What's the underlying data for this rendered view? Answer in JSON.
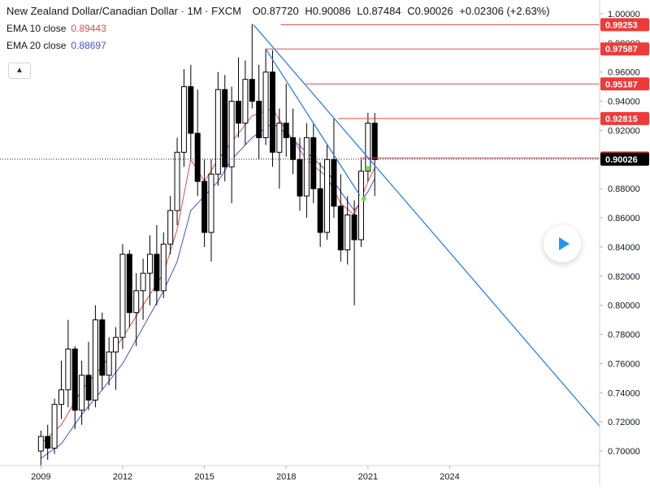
{
  "header": {
    "symbol": "New Zealand Dollar/Canadian Dollar · 1M · FXCM",
    "open": "O0.87720",
    "high": "H0.90086",
    "low": "L0.87484",
    "close": "C0.90026",
    "change": "+0.02306 (+2.63%)",
    "ema10_label": "EMA 10 close",
    "ema10_value": "0.89443",
    "ema20_label": "EMA 20 close",
    "ema20_value": "0.88697"
  },
  "colors": {
    "candle": "#000000",
    "ema10": "#e04c4c",
    "ema20": "#4c4ce0",
    "level_line": "#e04c4c",
    "level_label_bg": "#ef3a3a",
    "trendline": "#2f7ef0",
    "price_label_bg": "#000000",
    "marker": "#7ed957"
  },
  "icons": {
    "collapse": "chevron-up-icon",
    "play": "play-icon"
  },
  "chart_data": {
    "type": "candlestick",
    "x_ticks": [
      "2009",
      "2012",
      "2015",
      "2018",
      "2021",
      "2024"
    ],
    "y_ticks": [
      "0.70000",
      "0.72000",
      "0.74000",
      "0.76000",
      "0.78000",
      "0.80000",
      "0.82000",
      "0.84000",
      "0.86000",
      "0.88000",
      "0.90000",
      "0.92000",
      "0.94000",
      "0.96000",
      "0.98000",
      "1.00000"
    ],
    "ylim": [
      0.69,
      1.005
    ],
    "xlim": [
      2007.5,
      2029.5
    ],
    "current_price": "0.90026",
    "horizontal_levels": [
      {
        "price": 0.99253,
        "label": "0.99253",
        "start_x": 2017.8
      },
      {
        "price": 0.97587,
        "label": "0.97587",
        "start_x": 2017.25
      },
      {
        "price": 0.95187,
        "label": "0.95187",
        "start_x": 2018.7
      },
      {
        "price": 0.92815,
        "label": "0.92815",
        "start_x": 2019.9
      },
      {
        "price": 0.90112,
        "label": "0.90112",
        "start_x": 2020.7
      }
    ],
    "trendlines": [
      {
        "x1": 2016.8,
        "y1": 0.9925,
        "x2": 2029.5,
        "y2": 0.717
      },
      {
        "x1": 2017.25,
        "y1": 0.9759,
        "x2": 2020.7,
        "y2": 0.8755
      }
    ],
    "markers": [
      {
        "x": 2020.85,
        "y": 0.873
      },
      {
        "x": 2021.0,
        "y": 0.894
      }
    ],
    "candles": [
      {
        "x": 2009.0,
        "o": 0.7,
        "h": 0.714,
        "l": 0.69,
        "c": 0.71
      },
      {
        "x": 2009.25,
        "o": 0.71,
        "h": 0.718,
        "l": 0.694,
        "c": 0.702
      },
      {
        "x": 2009.5,
        "o": 0.702,
        "h": 0.736,
        "l": 0.698,
        "c": 0.732
      },
      {
        "x": 2009.75,
        "o": 0.732,
        "h": 0.762,
        "l": 0.722,
        "c": 0.742
      },
      {
        "x": 2010.0,
        "o": 0.742,
        "h": 0.79,
        "l": 0.73,
        "c": 0.77
      },
      {
        "x": 2010.25,
        "o": 0.77,
        "h": 0.772,
        "l": 0.715,
        "c": 0.728
      },
      {
        "x": 2010.5,
        "o": 0.728,
        "h": 0.762,
        "l": 0.718,
        "c": 0.752
      },
      {
        "x": 2010.75,
        "o": 0.752,
        "h": 0.775,
        "l": 0.728,
        "c": 0.735
      },
      {
        "x": 2011.0,
        "o": 0.735,
        "h": 0.8,
        "l": 0.73,
        "c": 0.79
      },
      {
        "x": 2011.25,
        "o": 0.79,
        "h": 0.795,
        "l": 0.742,
        "c": 0.752
      },
      {
        "x": 2011.5,
        "o": 0.752,
        "h": 0.778,
        "l": 0.745,
        "c": 0.768
      },
      {
        "x": 2011.75,
        "o": 0.768,
        "h": 0.785,
        "l": 0.742,
        "c": 0.778
      },
      {
        "x": 2012.0,
        "o": 0.778,
        "h": 0.842,
        "l": 0.77,
        "c": 0.835
      },
      {
        "x": 2012.25,
        "o": 0.835,
        "h": 0.838,
        "l": 0.785,
        "c": 0.795
      },
      {
        "x": 2012.5,
        "o": 0.795,
        "h": 0.822,
        "l": 0.772,
        "c": 0.81
      },
      {
        "x": 2012.75,
        "o": 0.81,
        "h": 0.832,
        "l": 0.79,
        "c": 0.822
      },
      {
        "x": 2013.0,
        "o": 0.822,
        "h": 0.848,
        "l": 0.8,
        "c": 0.835
      },
      {
        "x": 2013.25,
        "o": 0.835,
        "h": 0.855,
        "l": 0.8,
        "c": 0.81
      },
      {
        "x": 2013.5,
        "o": 0.81,
        "h": 0.85,
        "l": 0.805,
        "c": 0.842
      },
      {
        "x": 2013.75,
        "o": 0.842,
        "h": 0.875,
        "l": 0.835,
        "c": 0.865
      },
      {
        "x": 2014.0,
        "o": 0.865,
        "h": 0.915,
        "l": 0.855,
        "c": 0.905
      },
      {
        "x": 2014.25,
        "o": 0.905,
        "h": 0.962,
        "l": 0.895,
        "c": 0.95
      },
      {
        "x": 2014.5,
        "o": 0.95,
        "h": 0.965,
        "l": 0.9,
        "c": 0.918
      },
      {
        "x": 2014.75,
        "o": 0.918,
        "h": 0.948,
        "l": 0.875,
        "c": 0.885
      },
      {
        "x": 2015.0,
        "o": 0.885,
        "h": 0.9,
        "l": 0.84,
        "c": 0.85
      },
      {
        "x": 2015.25,
        "o": 0.85,
        "h": 0.9,
        "l": 0.83,
        "c": 0.89
      },
      {
        "x": 2015.5,
        "o": 0.89,
        "h": 0.96,
        "l": 0.882,
        "c": 0.948
      },
      {
        "x": 2015.75,
        "o": 0.948,
        "h": 0.958,
        "l": 0.885,
        "c": 0.895
      },
      {
        "x": 2016.0,
        "o": 0.895,
        "h": 0.95,
        "l": 0.87,
        "c": 0.94
      },
      {
        "x": 2016.25,
        "o": 0.94,
        "h": 0.97,
        "l": 0.915,
        "c": 0.925
      },
      {
        "x": 2016.5,
        "o": 0.925,
        "h": 0.968,
        "l": 0.91,
        "c": 0.955
      },
      {
        "x": 2016.75,
        "o": 0.955,
        "h": 0.993,
        "l": 0.935,
        "c": 0.94
      },
      {
        "x": 2017.0,
        "o": 0.94,
        "h": 0.965,
        "l": 0.9,
        "c": 0.915
      },
      {
        "x": 2017.25,
        "o": 0.915,
        "h": 0.976,
        "l": 0.91,
        "c": 0.96
      },
      {
        "x": 2017.5,
        "o": 0.96,
        "h": 0.975,
        "l": 0.895,
        "c": 0.905
      },
      {
        "x": 2017.75,
        "o": 0.905,
        "h": 0.935,
        "l": 0.88,
        "c": 0.925
      },
      {
        "x": 2018.0,
        "o": 0.925,
        "h": 0.952,
        "l": 0.902,
        "c": 0.915
      },
      {
        "x": 2018.25,
        "o": 0.915,
        "h": 0.935,
        "l": 0.89,
        "c": 0.9
      },
      {
        "x": 2018.5,
        "o": 0.9,
        "h": 0.915,
        "l": 0.865,
        "c": 0.875
      },
      {
        "x": 2018.75,
        "o": 0.875,
        "h": 0.925,
        "l": 0.86,
        "c": 0.915
      },
      {
        "x": 2019.0,
        "o": 0.915,
        "h": 0.925,
        "l": 0.87,
        "c": 0.88
      },
      {
        "x": 2019.25,
        "o": 0.88,
        "h": 0.898,
        "l": 0.84,
        "c": 0.85
      },
      {
        "x": 2019.5,
        "o": 0.85,
        "h": 0.91,
        "l": 0.845,
        "c": 0.9
      },
      {
        "x": 2019.75,
        "o": 0.9,
        "h": 0.928,
        "l": 0.86,
        "c": 0.868
      },
      {
        "x": 2020.0,
        "o": 0.868,
        "h": 0.89,
        "l": 0.83,
        "c": 0.838
      },
      {
        "x": 2020.25,
        "o": 0.838,
        "h": 0.875,
        "l": 0.828,
        "c": 0.862
      },
      {
        "x": 2020.5,
        "o": 0.862,
        "h": 0.872,
        "l": 0.8,
        "c": 0.845
      },
      {
        "x": 2020.75,
        "o": 0.845,
        "h": 0.9,
        "l": 0.84,
        "c": 0.892
      },
      {
        "x": 2021.0,
        "o": 0.892,
        "h": 0.932,
        "l": 0.885,
        "c": 0.925
      },
      {
        "x": 2021.25,
        "o": 0.925,
        "h": 0.932,
        "l": 0.875,
        "c": 0.9
      }
    ],
    "ema10": [
      {
        "x": 2009.0,
        "y": 0.705
      },
      {
        "x": 2009.75,
        "y": 0.718
      },
      {
        "x": 2010.5,
        "y": 0.742
      },
      {
        "x": 2011.25,
        "y": 0.758
      },
      {
        "x": 2012.0,
        "y": 0.778
      },
      {
        "x": 2012.75,
        "y": 0.8
      },
      {
        "x": 2013.5,
        "y": 0.822
      },
      {
        "x": 2014.0,
        "y": 0.852
      },
      {
        "x": 2014.5,
        "y": 0.9
      },
      {
        "x": 2015.0,
        "y": 0.885
      },
      {
        "x": 2015.5,
        "y": 0.9
      },
      {
        "x": 2016.0,
        "y": 0.912
      },
      {
        "x": 2016.75,
        "y": 0.93
      },
      {
        "x": 2017.5,
        "y": 0.935
      },
      {
        "x": 2018.0,
        "y": 0.92
      },
      {
        "x": 2018.75,
        "y": 0.9
      },
      {
        "x": 2019.5,
        "y": 0.888
      },
      {
        "x": 2020.0,
        "y": 0.87
      },
      {
        "x": 2020.5,
        "y": 0.862
      },
      {
        "x": 2021.0,
        "y": 0.885
      },
      {
        "x": 2021.25,
        "y": 0.8944
      }
    ],
    "ema20": [
      {
        "x": 2009.0,
        "y": 0.695
      },
      {
        "x": 2009.75,
        "y": 0.705
      },
      {
        "x": 2010.5,
        "y": 0.725
      },
      {
        "x": 2011.25,
        "y": 0.742
      },
      {
        "x": 2012.0,
        "y": 0.76
      },
      {
        "x": 2012.75,
        "y": 0.785
      },
      {
        "x": 2013.5,
        "y": 0.81
      },
      {
        "x": 2014.0,
        "y": 0.83
      },
      {
        "x": 2014.5,
        "y": 0.865
      },
      {
        "x": 2015.0,
        "y": 0.875
      },
      {
        "x": 2015.5,
        "y": 0.885
      },
      {
        "x": 2016.0,
        "y": 0.9
      },
      {
        "x": 2016.75,
        "y": 0.915
      },
      {
        "x": 2017.5,
        "y": 0.925
      },
      {
        "x": 2018.0,
        "y": 0.918
      },
      {
        "x": 2018.75,
        "y": 0.905
      },
      {
        "x": 2019.5,
        "y": 0.892
      },
      {
        "x": 2020.0,
        "y": 0.878
      },
      {
        "x": 2020.5,
        "y": 0.865
      },
      {
        "x": 2021.0,
        "y": 0.878
      },
      {
        "x": 2021.25,
        "y": 0.887
      }
    ]
  }
}
